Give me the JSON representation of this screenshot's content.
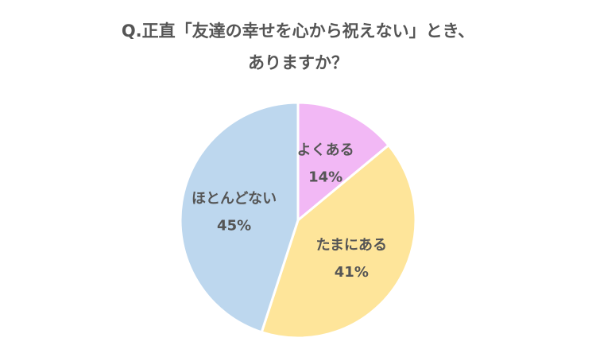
{
  "chart_data": {
    "type": "pie",
    "title": [
      "Q.正直「友達の幸せを心から祝えない」とき、",
      "ありますか？"
    ],
    "categories": [
      "よくある",
      "たまにある",
      "ほとんどない"
    ],
    "values": [
      14,
      41,
      45
    ],
    "value_labels": [
      "14%",
      "41%",
      "45%"
    ],
    "colors": [
      "#f2b8f5",
      "#fee59a",
      "#bdd7ee"
    ]
  }
}
